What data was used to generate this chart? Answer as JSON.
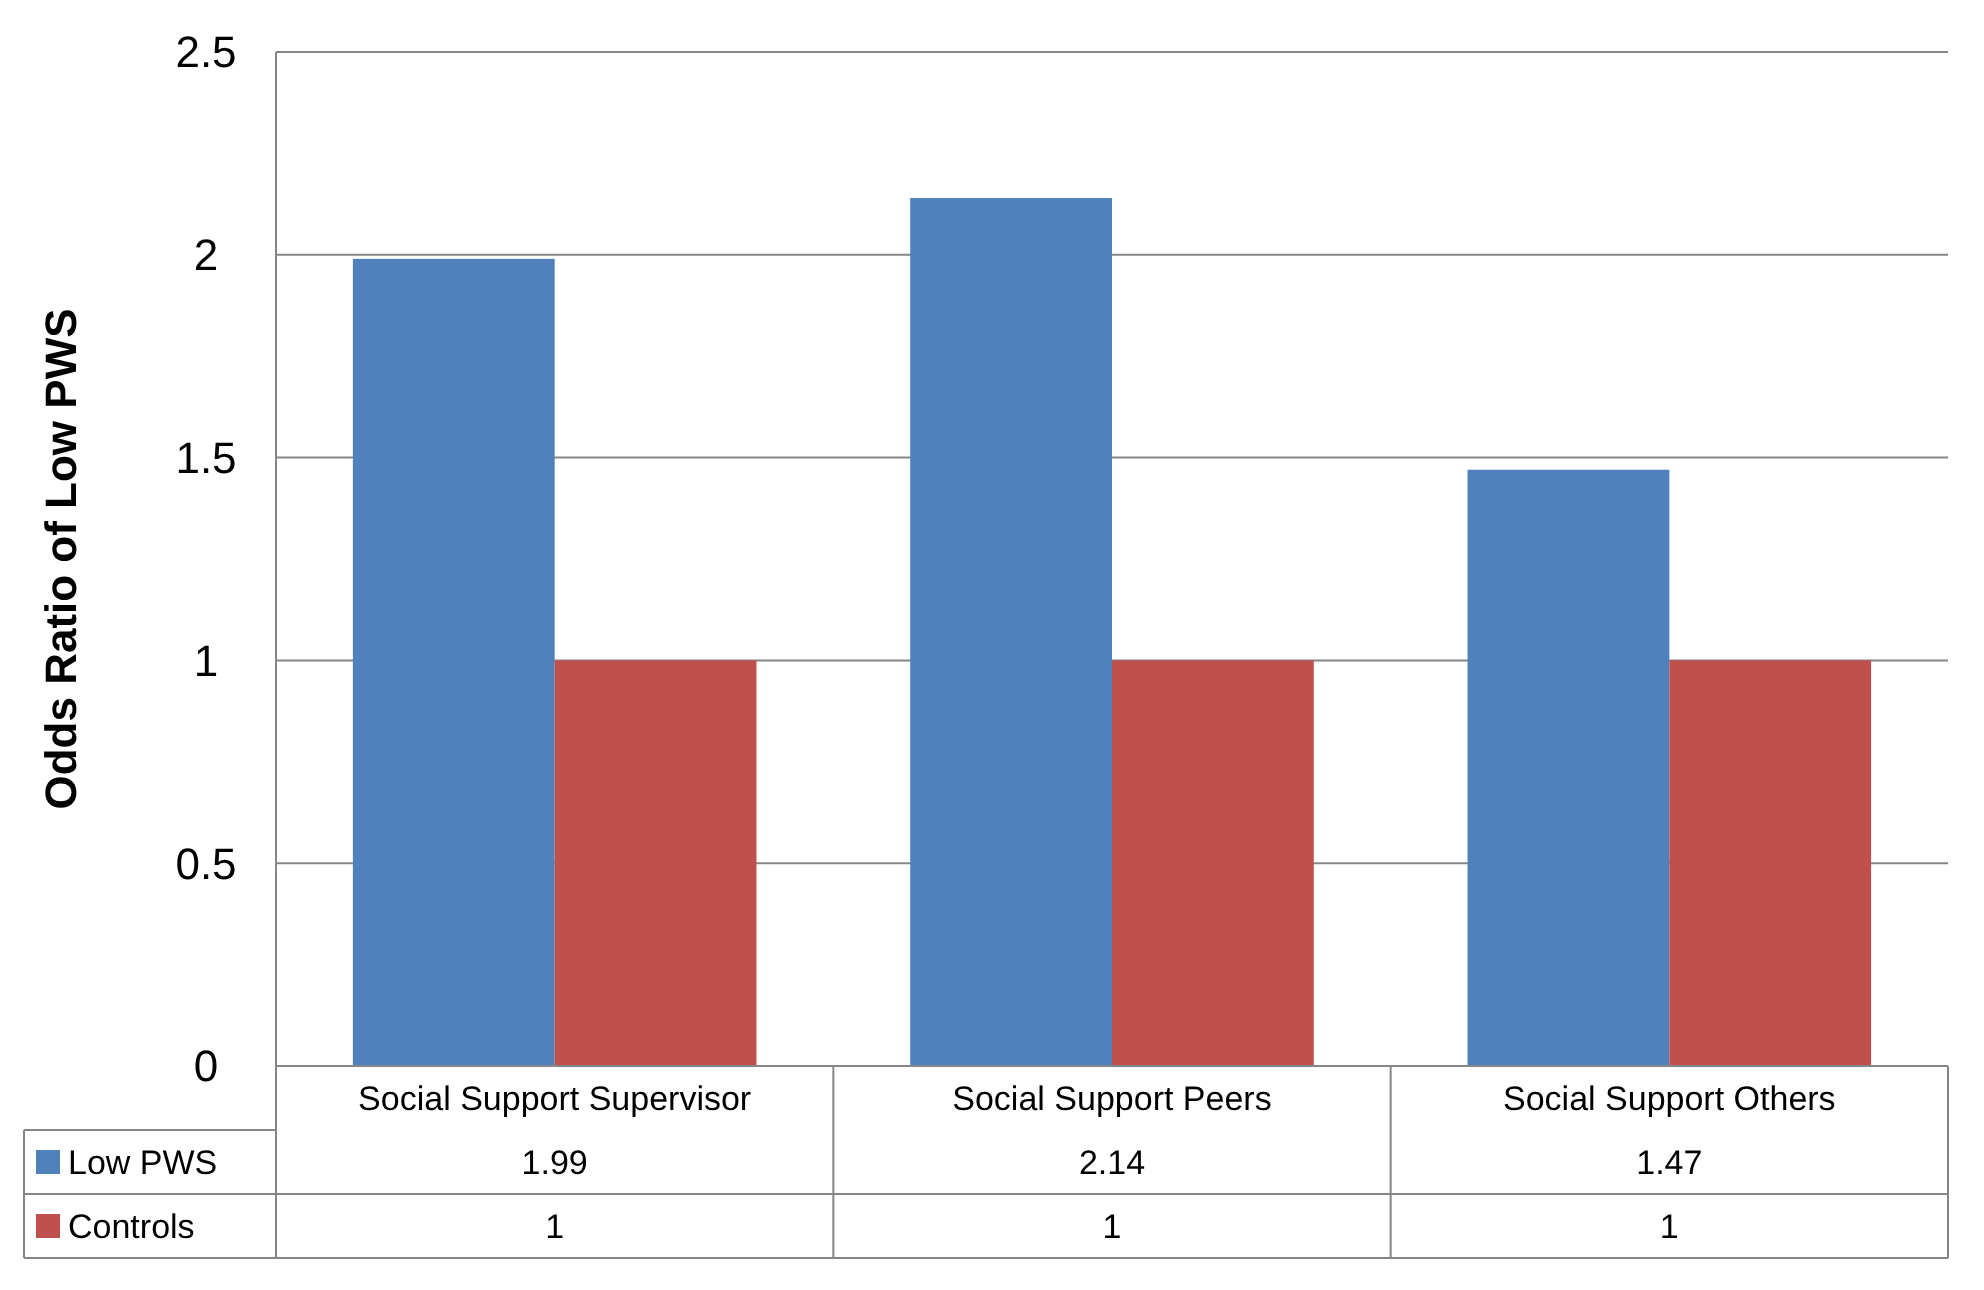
{
  "chart_data": {
    "type": "bar",
    "ylabel": "Odds Ratio of Low PWS",
    "categories": [
      "Social Support Supervisor",
      "Social Support Peers",
      "Social Support Others"
    ],
    "series": [
      {
        "name": "Low PWS",
        "color": "#4f81bd",
        "values": [
          1.99,
          2.14,
          1.47
        ]
      },
      {
        "name": "Controls",
        "color": "#c0504d",
        "values": [
          1,
          1,
          1
        ]
      }
    ],
    "ylim": [
      0,
      2.5
    ],
    "yticks": [
      0,
      0.5,
      1,
      1.5,
      2,
      2.5
    ],
    "grid": "y",
    "data_labels": true,
    "legend": "bottom"
  }
}
